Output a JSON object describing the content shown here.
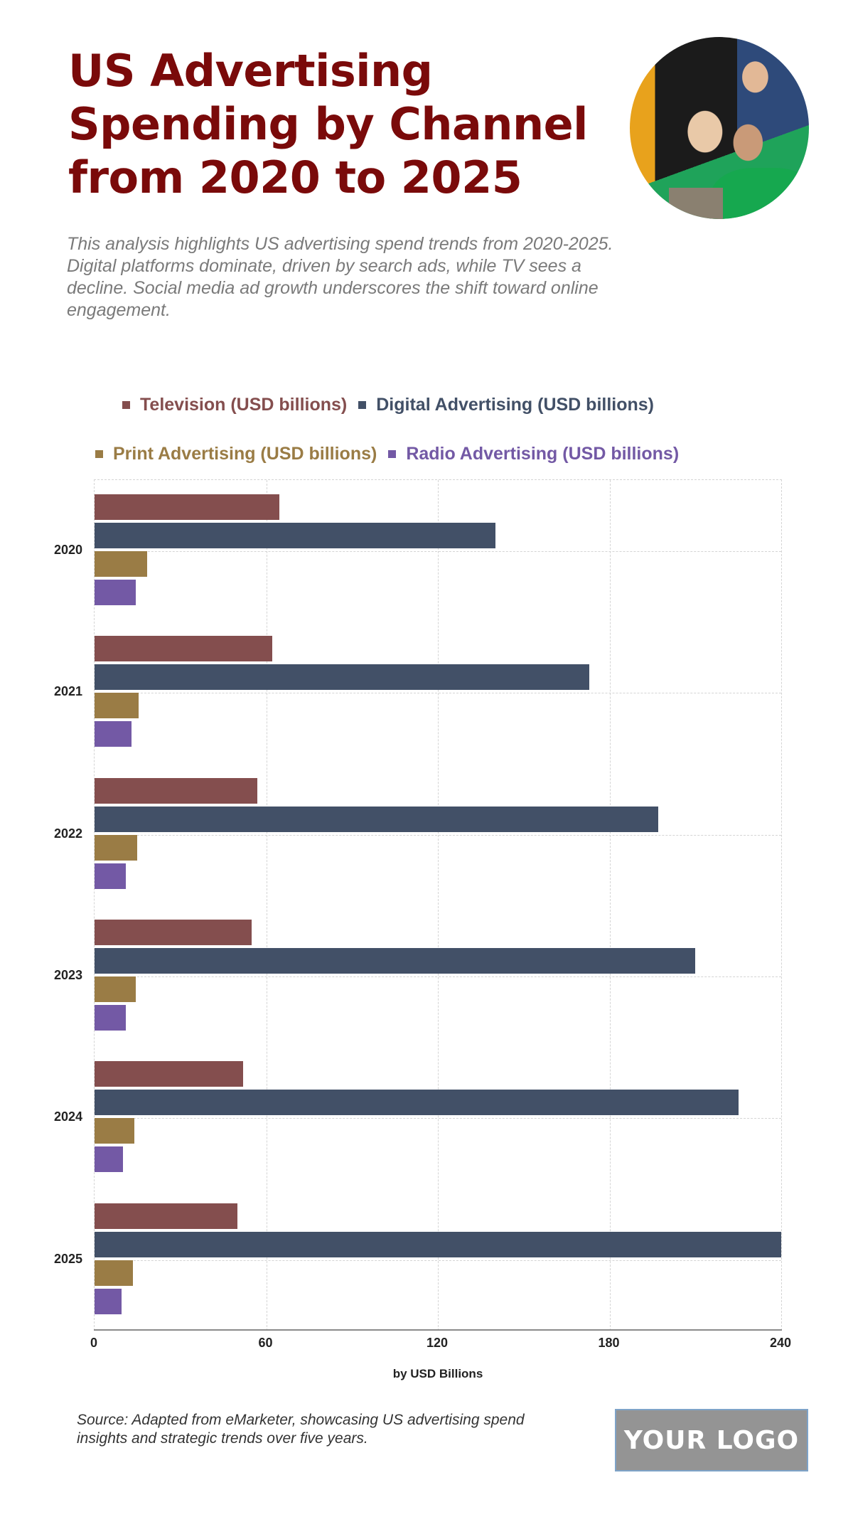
{
  "header": {
    "title": "US Advertising Spending by Channel from 2020 to 2025",
    "description": "This analysis highlights US advertising spend trends from 2020-2025. Digital platforms dominate, driven by search ads, while TV sees a decline. Social media ad growth underscores the shift toward online engagement.",
    "photo_alt": "team-photo"
  },
  "legend": [
    {
      "label": "Television (USD billions)",
      "color": "#844E4E"
    },
    {
      "label": "Digital Advertising (USD billions)",
      "color": "#425067"
    },
    {
      "label": "Print Advertising (USD billions)",
      "color": "#9A7C45"
    },
    {
      "label": "Radio Advertising (USD billions)",
      "color": "#7359A5"
    }
  ],
  "chart_data": {
    "type": "bar",
    "orientation": "horizontal",
    "title": "US Advertising Spending by Channel from 2020 to 2025",
    "xlabel": "by USD Billions",
    "ylabel": "",
    "categories": [
      "2020",
      "2021",
      "2022",
      "2023",
      "2024",
      "2025"
    ],
    "series": [
      {
        "name": "Television (USD billions)",
        "color": "#844E4E",
        "values": [
          64.5,
          62.0,
          57.0,
          55.0,
          52.0,
          50.0
        ]
      },
      {
        "name": "Digital Advertising (USD billions)",
        "color": "#425067",
        "values": [
          140.0,
          173.0,
          197.0,
          210.0,
          225.0,
          240.0
        ]
      },
      {
        "name": "Print Advertising (USD billions)",
        "color": "#9A7C45",
        "values": [
          18.5,
          15.5,
          15.0,
          14.5,
          14.0,
          13.5
        ]
      },
      {
        "name": "Radio Advertising (USD billions)",
        "color": "#7359A5",
        "values": [
          14.5,
          13.0,
          11.0,
          11.0,
          10.0,
          9.5
        ]
      }
    ],
    "xlim": [
      0,
      240
    ],
    "xticks": [
      "0",
      "60",
      "120",
      "180",
      "240"
    ],
    "grid": true,
    "legend_position": "top"
  },
  "footer": {
    "source": "Source: Adapted from eMarketer, showcasing US advertising spend insights and strategic trends over five years.",
    "logo": "YOUR LOGO"
  }
}
